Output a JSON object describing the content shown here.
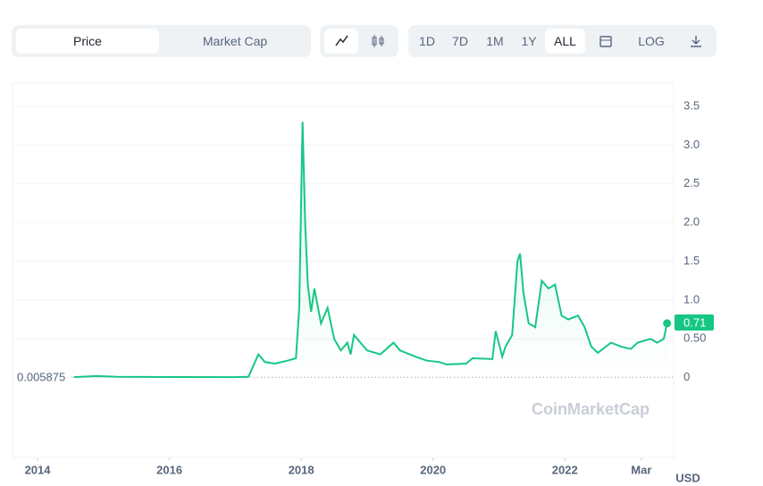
{
  "toolbar": {
    "tabs": [
      "Price",
      "Market Cap"
    ],
    "ranges": [
      "1D",
      "7D",
      "1M",
      "1Y",
      "ALL"
    ],
    "log": "LOG"
  },
  "chart_data": {
    "type": "line",
    "watermark": "CoinMarketCap",
    "y_unit": "USD",
    "baseline": 0.005875,
    "last_price": 0.71,
    "xlim": [
      2013.62,
      2023.65
    ],
    "xticks": [
      2014,
      2016,
      2018,
      2020,
      2022,
      {
        "value": 2023.16,
        "label": "Mar"
      }
    ],
    "ylim": [
      -1.03,
      3.8
    ],
    "yticks": [
      0,
      {
        "value": 0.5,
        "label": "0.50"
      },
      {
        "value": 1.0,
        "label": "1.0"
      },
      {
        "value": 1.5,
        "label": "1.5"
      },
      {
        "value": 2.0,
        "label": "2.0"
      },
      {
        "value": 2.5,
        "label": "2.5"
      },
      {
        "value": 3.0,
        "label": "3.0"
      },
      {
        "value": 3.5,
        "label": "3.5"
      }
    ],
    "grid": true,
    "series": [
      {
        "name": "Price",
        "color": "#16c784",
        "x": [
          2014.55,
          2014.9,
          2015.2,
          2016.0,
          2017.0,
          2017.2,
          2017.35,
          2017.45,
          2017.6,
          2017.8,
          2017.92,
          2017.97,
          2018.02,
          2018.06,
          2018.1,
          2018.15,
          2018.2,
          2018.3,
          2018.4,
          2018.5,
          2018.6,
          2018.7,
          2018.75,
          2018.8,
          2018.9,
          2019.0,
          2019.2,
          2019.4,
          2019.5,
          2019.7,
          2019.9,
          2020.1,
          2020.2,
          2020.5,
          2020.6,
          2020.9,
          2020.95,
          2021.05,
          2021.1,
          2021.2,
          2021.28,
          2021.32,
          2021.37,
          2021.45,
          2021.55,
          2021.65,
          2021.75,
          2021.85,
          2021.95,
          2022.05,
          2022.2,
          2022.3,
          2022.4,
          2022.5,
          2022.7,
          2022.85,
          2023.0,
          2023.1,
          2023.3,
          2023.4,
          2023.5,
          2023.55
        ],
        "values": [
          0.006,
          0.02,
          0.01,
          0.007,
          0.006,
          0.01,
          0.3,
          0.2,
          0.18,
          0.22,
          0.25,
          0.9,
          3.3,
          2.0,
          1.2,
          0.85,
          1.15,
          0.7,
          0.9,
          0.5,
          0.35,
          0.45,
          0.3,
          0.55,
          0.45,
          0.35,
          0.3,
          0.45,
          0.35,
          0.28,
          0.22,
          0.2,
          0.17,
          0.18,
          0.25,
          0.24,
          0.6,
          0.27,
          0.4,
          0.55,
          1.5,
          1.6,
          1.1,
          0.7,
          0.65,
          1.25,
          1.15,
          1.2,
          0.8,
          0.75,
          0.8,
          0.65,
          0.4,
          0.32,
          0.45,
          0.4,
          0.37,
          0.45,
          0.5,
          0.45,
          0.5,
          0.7
        ]
      }
    ]
  }
}
